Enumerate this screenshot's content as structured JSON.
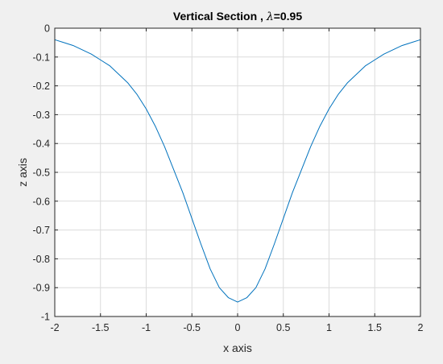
{
  "chart_data": {
    "type": "line",
    "title": {
      "prefix": "Vertical Section , ",
      "symbol": "λ",
      "suffix": "=0.95"
    },
    "xlabel": "x axis",
    "ylabel": "z axis",
    "xlim": [
      -2,
      2
    ],
    "ylim": [
      -1,
      0
    ],
    "grid": true,
    "x_ticks": [
      {
        "value": -2,
        "label": "-2"
      },
      {
        "value": -1.5,
        "label": "-1.5"
      },
      {
        "value": -1,
        "label": "-1"
      },
      {
        "value": -0.5,
        "label": "-0.5"
      },
      {
        "value": 0,
        "label": "0"
      },
      {
        "value": 0.5,
        "label": "0.5"
      },
      {
        "value": 1,
        "label": "1"
      },
      {
        "value": 1.5,
        "label": "1.5"
      },
      {
        "value": 2,
        "label": "2"
      }
    ],
    "y_ticks": [
      {
        "value": 0,
        "label": "0"
      },
      {
        "value": -0.1,
        "label": "-0.1"
      },
      {
        "value": -0.2,
        "label": "-0.2"
      },
      {
        "value": -0.3,
        "label": "-0.3"
      },
      {
        "value": -0.4,
        "label": "-0.4"
      },
      {
        "value": -0.5,
        "label": "-0.5"
      },
      {
        "value": -0.6,
        "label": "-0.6"
      },
      {
        "value": -0.7,
        "label": "-0.7"
      },
      {
        "value": -0.8,
        "label": "-0.8"
      },
      {
        "value": -0.9,
        "label": "-0.9"
      },
      {
        "value": -1,
        "label": "-1"
      }
    ],
    "series": [
      {
        "color": "#0072bd",
        "x": [
          -2.0,
          -1.9,
          -1.8,
          -1.7,
          -1.6,
          -1.5,
          -1.4,
          -1.3,
          -1.2,
          -1.1,
          -1.0,
          -0.9,
          -0.8,
          -0.7,
          -0.6,
          -0.5,
          -0.4,
          -0.3,
          -0.2,
          -0.1,
          0.0,
          0.1,
          0.2,
          0.3,
          0.4,
          0.5,
          0.6,
          0.7,
          0.8,
          0.9,
          1.0,
          1.1,
          1.2,
          1.3,
          1.4,
          1.5,
          1.6,
          1.7,
          1.8,
          1.9,
          2.0
        ],
        "y": [
          -0.04,
          -0.05,
          -0.06,
          -0.075,
          -0.09,
          -0.11,
          -0.13,
          -0.16,
          -0.19,
          -0.23,
          -0.28,
          -0.34,
          -0.41,
          -0.49,
          -0.57,
          -0.66,
          -0.75,
          -0.835,
          -0.9,
          -0.935,
          -0.95,
          -0.935,
          -0.9,
          -0.835,
          -0.75,
          -0.66,
          -0.57,
          -0.49,
          -0.41,
          -0.34,
          -0.28,
          -0.23,
          -0.19,
          -0.16,
          -0.13,
          -0.11,
          -0.09,
          -0.075,
          -0.06,
          -0.05,
          -0.04
        ]
      }
    ]
  }
}
